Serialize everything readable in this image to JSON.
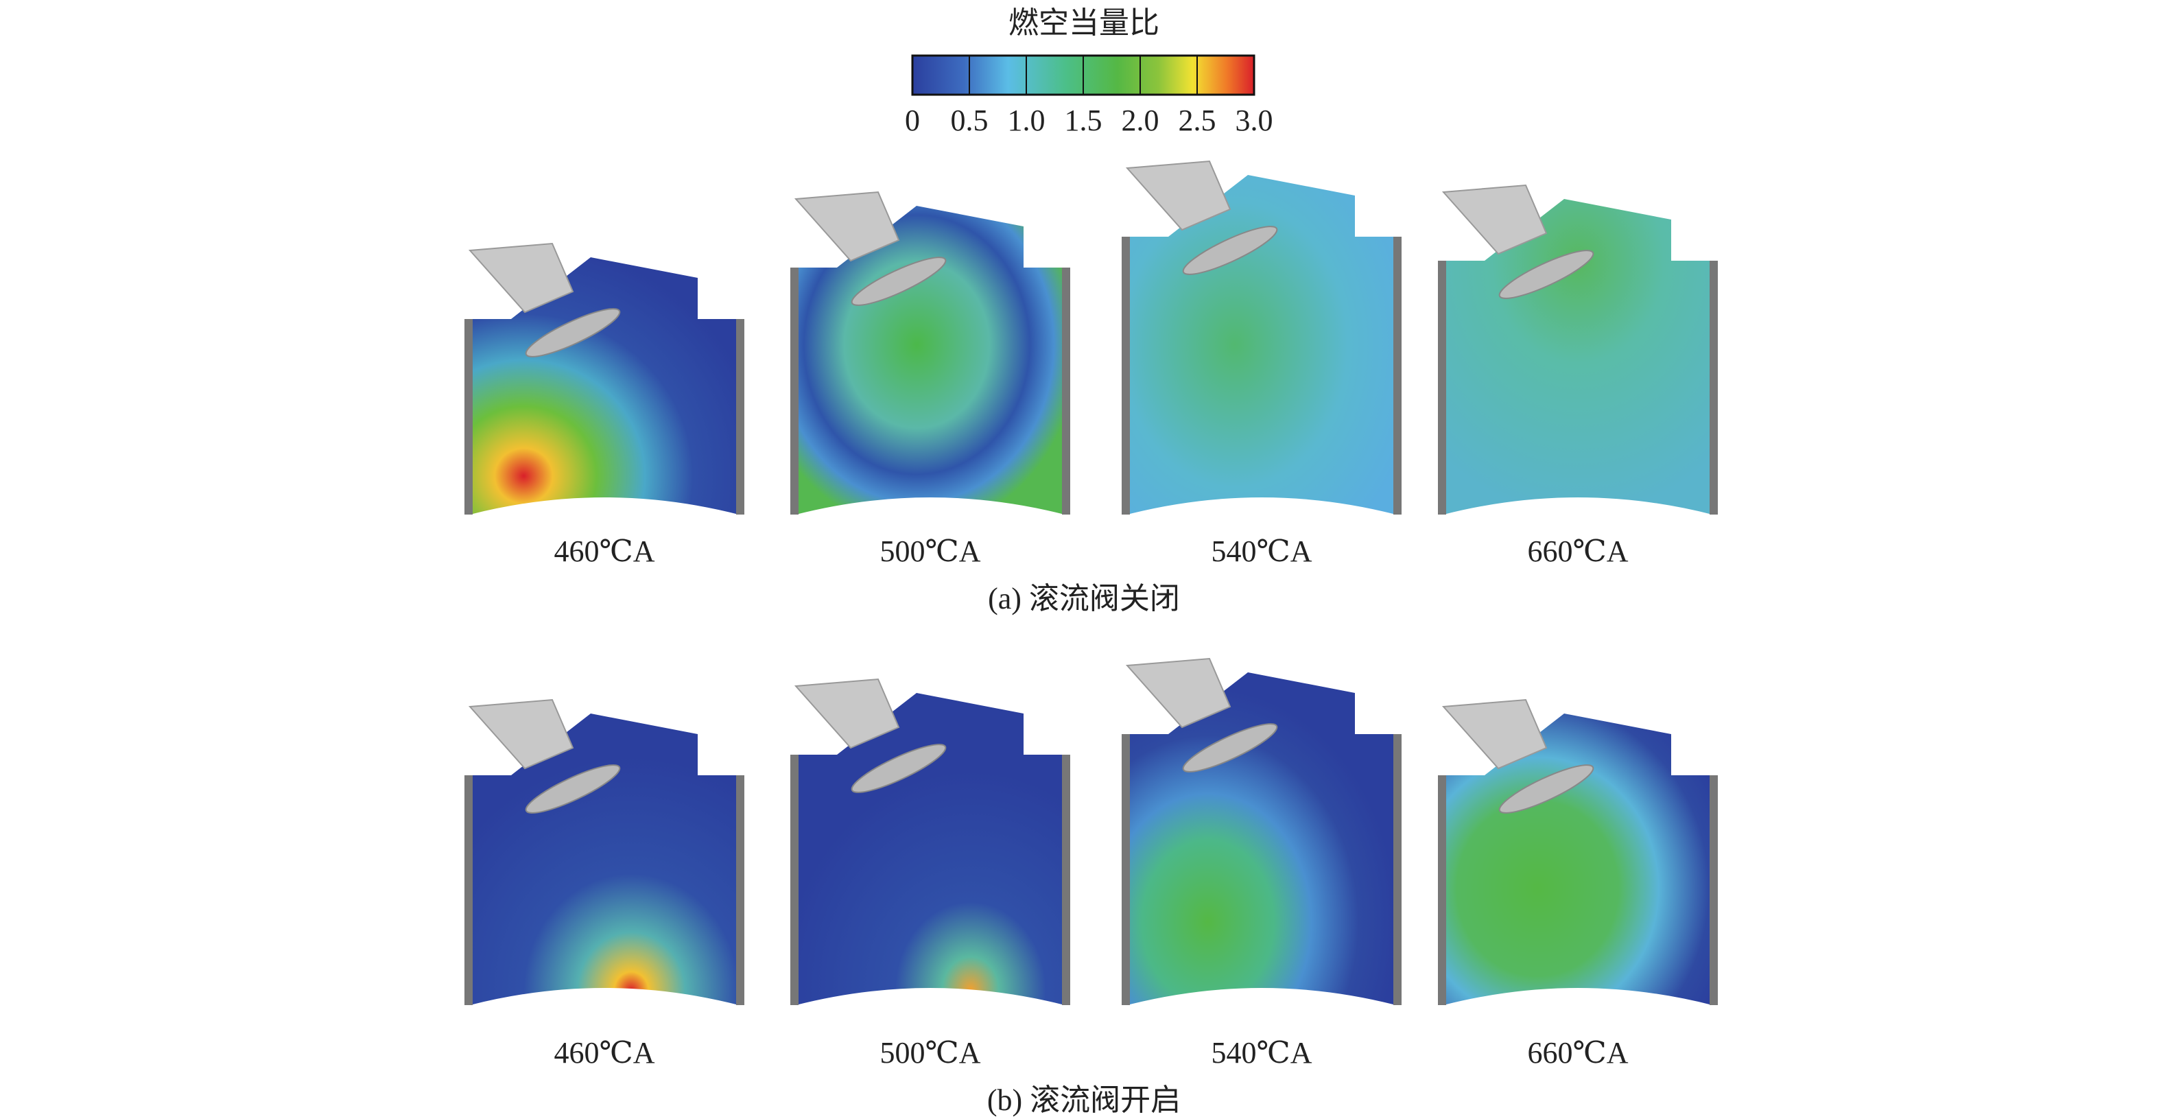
{
  "colorbar": {
    "title": "燃空当量比",
    "ticks": [
      "0",
      "0.5",
      "1.0",
      "1.5",
      "2.0",
      "2.5",
      "3.0"
    ]
  },
  "rows": [
    {
      "caption": "(a) 滚流阀关闭",
      "panels": [
        "460℃A",
        "500℃A",
        "540℃A",
        "660℃A"
      ]
    },
    {
      "caption": "(b) 滚流阀开启",
      "panels": [
        "460℃A",
        "500℃A",
        "540℃A",
        "660℃A"
      ]
    }
  ]
}
